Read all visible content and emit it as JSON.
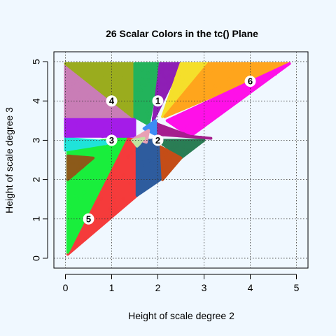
{
  "chart_data": {
    "type": "scatter",
    "title": "26 Scalar Colors in the tc() Plane",
    "xlabel": "Height of scale degree 2",
    "ylabel": "Height of scale degree 3",
    "xlim": [
      -0.25,
      5.25
    ],
    "ylim": [
      -0.25,
      5.25
    ],
    "xticks": [
      "0",
      "1",
      "2",
      "3",
      "4",
      "5"
    ],
    "yticks": [
      "0",
      "1",
      "2",
      "3",
      "4",
      "5"
    ],
    "grid": true,
    "grid_style": "dotted",
    "markers": [
      {
        "label": "1",
        "x": 2.0,
        "y": 4.0
      },
      {
        "label": "2",
        "x": 2.0,
        "y": 3.0
      },
      {
        "label": "3",
        "x": 1.0,
        "y": 3.0
      },
      {
        "label": "4",
        "x": 1.0,
        "y": 4.0
      },
      {
        "label": "5",
        "x": 0.5,
        "y": 1.0
      },
      {
        "label": "6",
        "x": 4.0,
        "y": 4.5
      }
    ],
    "regions": [
      {
        "color": "#f53b3b",
        "polygon": [
          [
            0.05,
            0.1
          ],
          [
            1.55,
            1.6
          ],
          [
            1.55,
            3.0
          ],
          [
            1.3,
            3.05
          ]
        ]
      },
      {
        "color": "#19ee3c",
        "polygon": [
          [
            0.05,
            0.15
          ],
          [
            1.3,
            3.05
          ],
          [
            0.05,
            2.9
          ]
        ]
      },
      {
        "color": "#8c5a1a",
        "polygon": [
          [
            0.05,
            2.0
          ],
          [
            0.6,
            2.55
          ],
          [
            0.05,
            2.6
          ]
        ]
      },
      {
        "color": "#20e3d9",
        "polygon": [
          [
            0.0,
            2.75
          ],
          [
            1.05,
            2.95
          ],
          [
            0.0,
            3.05
          ]
        ]
      },
      {
        "color": "#a41ce8",
        "polygon": [
          [
            0.0,
            3.1
          ],
          [
            1.5,
            3.1
          ],
          [
            1.5,
            3.6
          ],
          [
            0.0,
            3.55
          ]
        ]
      },
      {
        "color": "#c97db6",
        "polygon": [
          [
            0.0,
            3.6
          ],
          [
            1.45,
            3.6
          ],
          [
            0.0,
            4.9
          ]
        ]
      },
      {
        "color": "#9aac1e",
        "polygon": [
          [
            0.0,
            4.95
          ],
          [
            1.45,
            4.95
          ],
          [
            1.45,
            3.6
          ]
        ]
      },
      {
        "color": "#22b35b",
        "polygon": [
          [
            1.5,
            4.95
          ],
          [
            2.05,
            4.95
          ],
          [
            1.8,
            3.4
          ],
          [
            1.5,
            3.6
          ]
        ]
      },
      {
        "color": "#8e1fb5",
        "polygon": [
          [
            2.05,
            4.95
          ],
          [
            2.5,
            4.95
          ],
          [
            1.9,
            3.5
          ]
        ]
      },
      {
        "color": "#f5df2b",
        "polygon": [
          [
            2.5,
            4.95
          ],
          [
            3.1,
            4.95
          ],
          [
            2.1,
            3.6
          ]
        ]
      },
      {
        "color": "#ffa51c",
        "polygon": [
          [
            3.1,
            4.95
          ],
          [
            4.85,
            4.95
          ],
          [
            2.15,
            3.6
          ]
        ]
      },
      {
        "color": "#ff10e8",
        "polygon": [
          [
            4.85,
            4.95
          ],
          [
            2.2,
            3.5
          ],
          [
            2.7,
            3.1
          ]
        ]
      },
      {
        "color": "#a51e8e",
        "polygon": [
          [
            1.9,
            3.45
          ],
          [
            2.7,
            3.1
          ],
          [
            3.15,
            3.05
          ],
          [
            2.0,
            3.15
          ]
        ]
      },
      {
        "color": "#2a7d55",
        "polygon": [
          [
            2.0,
            3.0
          ],
          [
            3.0,
            3.0
          ],
          [
            2.5,
            2.55
          ]
        ]
      },
      {
        "color": "#c44d18",
        "polygon": [
          [
            1.95,
            2.9
          ],
          [
            2.5,
            2.55
          ],
          [
            2.1,
            2.0
          ]
        ]
      },
      {
        "color": "#2e5c9e",
        "polygon": [
          [
            1.55,
            1.6
          ],
          [
            1.55,
            3.0
          ],
          [
            2.0,
            3.0
          ],
          [
            2.05,
            2.0
          ]
        ]
      },
      {
        "color": "#3d8cf5",
        "polygon": [
          [
            1.7,
            3.3
          ],
          [
            1.95,
            3.5
          ],
          [
            1.95,
            3.15
          ]
        ]
      },
      {
        "color": "#e8a0b4",
        "polygon": [
          [
            1.5,
            3.05
          ],
          [
            1.8,
            3.25
          ],
          [
            1.75,
            2.95
          ]
        ]
      },
      {
        "color": "#bfe3a0",
        "polygon": [
          [
            1.45,
            3.0
          ],
          [
            1.7,
            3.05
          ],
          [
            1.55,
            2.85
          ]
        ]
      }
    ]
  }
}
